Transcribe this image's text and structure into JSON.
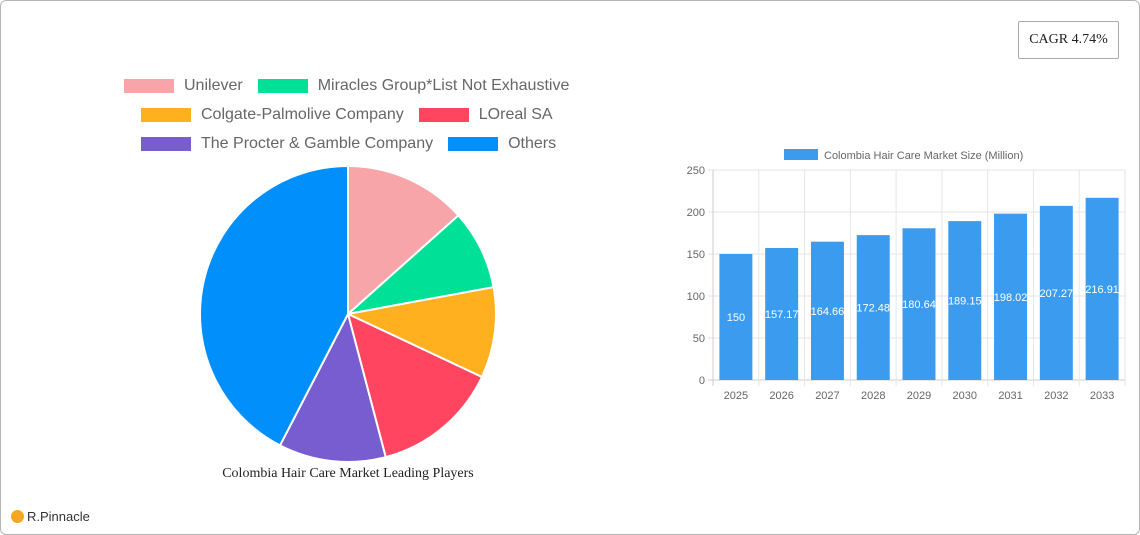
{
  "cagr_badge": {
    "label": "CAGR 4.74%"
  },
  "brand": {
    "name": "R.Pinnacle"
  },
  "pie_chart": {
    "title": "Colombia Hair Care Market Leading Players",
    "legend": [
      {
        "label": "Unilever",
        "color": "#f8a5a9"
      },
      {
        "label": "Miracles Group*List Not Exhaustive",
        "color": "#00e096"
      },
      {
        "label": "Colgate-Palmolive Company",
        "color": "#ffb01f"
      },
      {
        "label": "LOreal SA",
        "color": "#ff4560"
      },
      {
        "label": "The Procter & Gamble Company",
        "color": "#775dd0"
      },
      {
        "label": "Others",
        "color": "#008ffb"
      }
    ]
  },
  "bar_chart": {
    "legend_label": "Colombia Hair Care Market Size (Million)",
    "bar_color": "#3a9bef"
  },
  "chart_data": [
    {
      "type": "pie",
      "title": "Colombia Hair Care Market Leading Players",
      "categories": [
        "Unilever",
        "Miracles Group*List Not Exhaustive",
        "Colgate-Palmolive Company",
        "LOreal SA",
        "The Procter & Gamble Company",
        "Others"
      ],
      "values": [
        13.4,
        8.7,
        9.9,
        13.9,
        11.7,
        42.4
      ],
      "colors": [
        "#f8a5a9",
        "#00e096",
        "#ffb01f",
        "#ff4560",
        "#775dd0",
        "#008ffb"
      ],
      "legend_position": "top",
      "unit": "approx. share %"
    },
    {
      "type": "bar",
      "title": "",
      "categories": [
        "2025",
        "2026",
        "2027",
        "2028",
        "2029",
        "2030",
        "2031",
        "2032",
        "2033"
      ],
      "series": [
        {
          "name": "Colombia Hair Care Market Size (Million)",
          "values": [
            150,
            157.17,
            164.66,
            172.48,
            180.64,
            189.15,
            198.02,
            207.27,
            216.91
          ]
        }
      ],
      "data_labels": [
        "150",
        "157.17",
        "164.66",
        "172.48",
        "180.64",
        "189.15",
        "198.02",
        "207.27",
        "216.91"
      ],
      "yticks": [
        0,
        50,
        100,
        150,
        200,
        250
      ],
      "ylim": [
        0,
        250
      ],
      "xlabel": "",
      "ylabel": "",
      "grid": true,
      "legend_position": "top"
    }
  ]
}
